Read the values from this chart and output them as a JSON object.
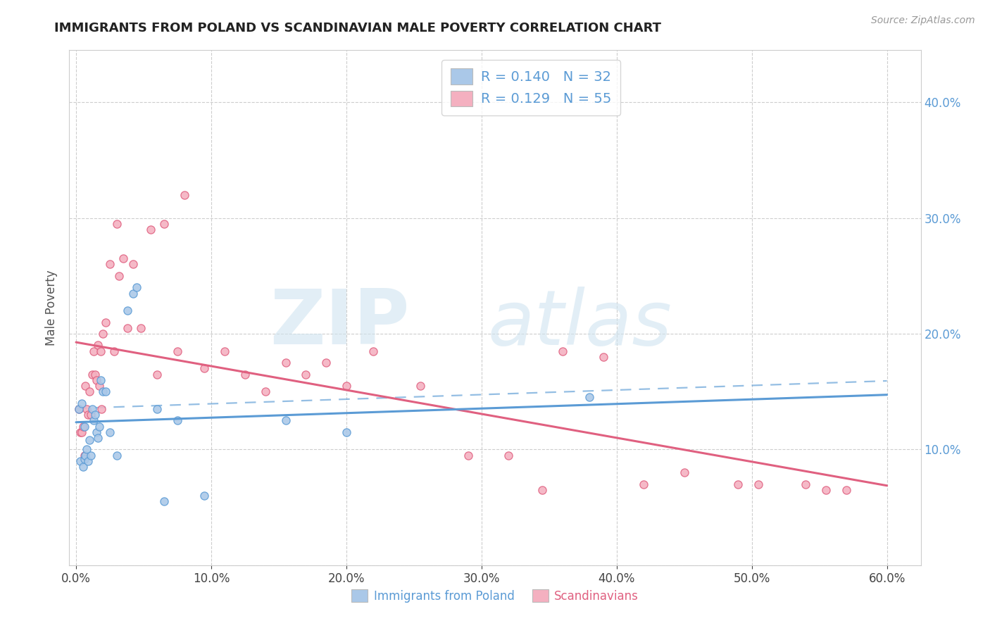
{
  "title": "IMMIGRANTS FROM POLAND VS SCANDINAVIAN MALE POVERTY CORRELATION CHART",
  "source": "Source: ZipAtlas.com",
  "ylabel": "Male Poverty",
  "xlabel_blue": "Immigrants from Poland",
  "xlabel_pink": "Scandinavians",
  "legend_blue_R": "0.140",
  "legend_blue_N": "32",
  "legend_pink_R": "0.129",
  "legend_pink_N": "55",
  "xlim": [
    -0.005,
    0.625
  ],
  "ylim": [
    0.0,
    0.445
  ],
  "yticks": [
    0.0,
    0.1,
    0.2,
    0.3,
    0.4
  ],
  "xticks": [
    0.0,
    0.1,
    0.2,
    0.3,
    0.4,
    0.5,
    0.6
  ],
  "color_blue_fill": "#aac8e8",
  "color_pink_fill": "#f4b0c0",
  "color_blue_edge": "#5b9bd5",
  "color_pink_edge": "#e06080",
  "color_blue_line": "#5b9bd5",
  "color_pink_line": "#e06080",
  "color_text_blue": "#5b9bd5",
  "color_grid": "#c8c8c8",
  "color_bg": "#ffffff",
  "blue_x": [
    0.002,
    0.003,
    0.004,
    0.005,
    0.006,
    0.006,
    0.007,
    0.008,
    0.009,
    0.01,
    0.011,
    0.012,
    0.013,
    0.014,
    0.015,
    0.016,
    0.017,
    0.018,
    0.02,
    0.022,
    0.025,
    0.03,
    0.038,
    0.042,
    0.045,
    0.06,
    0.065,
    0.075,
    0.095,
    0.155,
    0.2,
    0.38
  ],
  "blue_y": [
    0.135,
    0.09,
    0.14,
    0.085,
    0.092,
    0.12,
    0.095,
    0.1,
    0.09,
    0.108,
    0.095,
    0.135,
    0.125,
    0.13,
    0.115,
    0.11,
    0.12,
    0.16,
    0.15,
    0.15,
    0.115,
    0.095,
    0.22,
    0.235,
    0.24,
    0.135,
    0.055,
    0.125,
    0.06,
    0.125,
    0.115,
    0.145
  ],
  "pink_x": [
    0.002,
    0.003,
    0.004,
    0.005,
    0.006,
    0.007,
    0.008,
    0.009,
    0.01,
    0.011,
    0.012,
    0.013,
    0.014,
    0.015,
    0.016,
    0.017,
    0.018,
    0.019,
    0.02,
    0.022,
    0.025,
    0.028,
    0.03,
    0.032,
    0.035,
    0.038,
    0.042,
    0.048,
    0.055,
    0.06,
    0.065,
    0.075,
    0.08,
    0.095,
    0.11,
    0.125,
    0.14,
    0.155,
    0.17,
    0.185,
    0.2,
    0.22,
    0.255,
    0.29,
    0.32,
    0.345,
    0.36,
    0.39,
    0.42,
    0.45,
    0.49,
    0.505,
    0.54,
    0.555,
    0.57
  ],
  "pink_y": [
    0.135,
    0.115,
    0.115,
    0.12,
    0.095,
    0.155,
    0.135,
    0.13,
    0.15,
    0.13,
    0.165,
    0.185,
    0.165,
    0.16,
    0.19,
    0.155,
    0.185,
    0.135,
    0.2,
    0.21,
    0.26,
    0.185,
    0.295,
    0.25,
    0.265,
    0.205,
    0.26,
    0.205,
    0.29,
    0.165,
    0.295,
    0.185,
    0.32,
    0.17,
    0.185,
    0.165,
    0.15,
    0.175,
    0.165,
    0.175,
    0.155,
    0.185,
    0.155,
    0.095,
    0.095,
    0.065,
    0.185,
    0.18,
    0.07,
    0.08,
    0.07,
    0.07,
    0.07,
    0.065,
    0.065
  ]
}
